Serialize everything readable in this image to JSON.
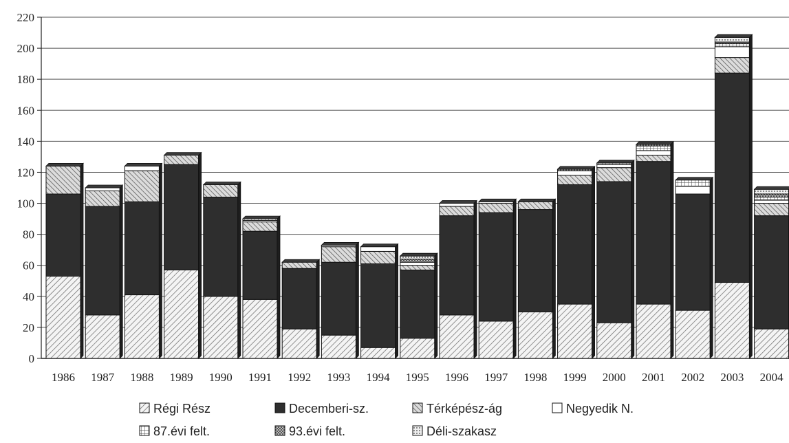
{
  "chart_data": {
    "type": "bar",
    "stacked": true,
    "grid": true,
    "legend_position": "bottom",
    "ylim": [
      0,
      220
    ],
    "yticks": [
      "0",
      "20",
      "40",
      "60",
      "80",
      "100",
      "120",
      "140",
      "160",
      "180",
      "200",
      "220"
    ],
    "categories": [
      "1986",
      "1987",
      "1988",
      "1989",
      "1990",
      "1991",
      "1992",
      "1993",
      "1994",
      "1995",
      "1996",
      "1997",
      "1998",
      "1999",
      "2000",
      "2001",
      "2002",
      "2003",
      "2004"
    ],
    "series": [
      {
        "name": "Régi Rész",
        "fill": "diag-light",
        "values": [
          53,
          28,
          41,
          57,
          40,
          38,
          19,
          15,
          7,
          13,
          28,
          24,
          30,
          35,
          23,
          35,
          31,
          49,
          19
        ]
      },
      {
        "name": "Decemberi-sz.",
        "fill": "solid-dark",
        "values": [
          53,
          70,
          60,
          68,
          64,
          44,
          39,
          47,
          54,
          44,
          64,
          70,
          66,
          77,
          91,
          92,
          75,
          135,
          73
        ]
      },
      {
        "name": "Térképész-ág",
        "fill": "diag-hatch",
        "values": [
          18,
          10,
          20,
          6,
          8,
          6,
          4,
          10,
          8,
          3,
          6,
          6,
          5,
          6,
          9,
          4,
          0,
          10,
          8
        ]
      },
      {
        "name": "Negyedik N.",
        "fill": "blank",
        "values": [
          0,
          2,
          3,
          0,
          0,
          1,
          0,
          1,
          3,
          2,
          2,
          1,
          0,
          3,
          2,
          3,
          5,
          7,
          2
        ]
      },
      {
        "name": "87.évi felt.",
        "fill": "grid",
        "values": [
          0,
          0,
          0,
          0,
          0,
          1,
          0,
          0,
          0,
          0,
          0,
          0,
          0,
          0,
          1,
          3,
          4,
          2,
          2
        ]
      },
      {
        "name": "93.évi felt.",
        "fill": "checker",
        "values": [
          0,
          0,
          0,
          0,
          0,
          0,
          0,
          0,
          0,
          2,
          0,
          0,
          0,
          1,
          0,
          1,
          0,
          1,
          2
        ]
      },
      {
        "name": "Déli-szakasz",
        "fill": "dots",
        "values": [
          0,
          0,
          0,
          0,
          0,
          0,
          0,
          0,
          0,
          2,
          0,
          0,
          0,
          0,
          0,
          0,
          0,
          3,
          3
        ]
      }
    ],
    "colors": {
      "dark": "#2e2e2e",
      "gridline": "#555555",
      "axis": "#222222"
    }
  }
}
